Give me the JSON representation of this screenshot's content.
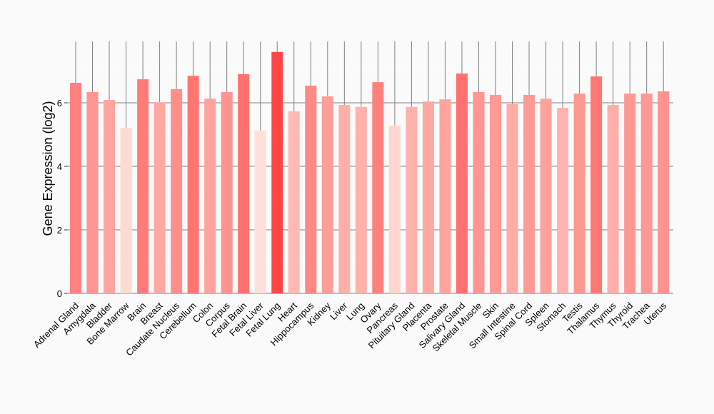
{
  "chart_data": {
    "type": "bar",
    "title": "",
    "xlabel": "",
    "ylabel": "Gene Expression (log2)",
    "ylim": [
      0,
      7.93
    ],
    "yticks": [
      0,
      2,
      4,
      6
    ],
    "grid": true,
    "categories": [
      "Adrenal Gland",
      "Amygdala",
      "Bladder",
      "Bone Marrow",
      "Brain",
      "Breast",
      "Caudate Nucleus",
      "Cerebellum",
      "Colon",
      "Corpus",
      "Fetal Brain",
      "Fetal Liver",
      "Fetal Lung",
      "Heart",
      "Hippocampus",
      "Kidney",
      "Liver",
      "Lung",
      "Ovary",
      "Pancreas",
      "Pituitary Gland",
      "Placenta",
      "Prostate",
      "Salivary Gland",
      "Skeletal Muscle",
      "Skin",
      "Small Intestine",
      "Spinal Cord",
      "Spleen",
      "Stomach",
      "Testis",
      "Thalamus",
      "Thymus",
      "Thyroid",
      "Trachea",
      "Uterus"
    ],
    "values": [
      6.63,
      6.34,
      6.09,
      5.21,
      6.74,
      6.02,
      6.43,
      6.85,
      6.13,
      6.34,
      6.9,
      5.12,
      7.6,
      5.73,
      6.54,
      6.2,
      5.93,
      5.87,
      6.65,
      5.28,
      5.87,
      6.04,
      6.11,
      6.92,
      6.34,
      6.25,
      5.96,
      6.25,
      6.13,
      5.84,
      6.29,
      6.83,
      5.93,
      6.29,
      6.29,
      6.36
    ],
    "colors": {
      "low": "#FFE0D8",
      "high": "#FF4646",
      "grid": "#7f7f7f",
      "background": "#fafafa"
    }
  }
}
